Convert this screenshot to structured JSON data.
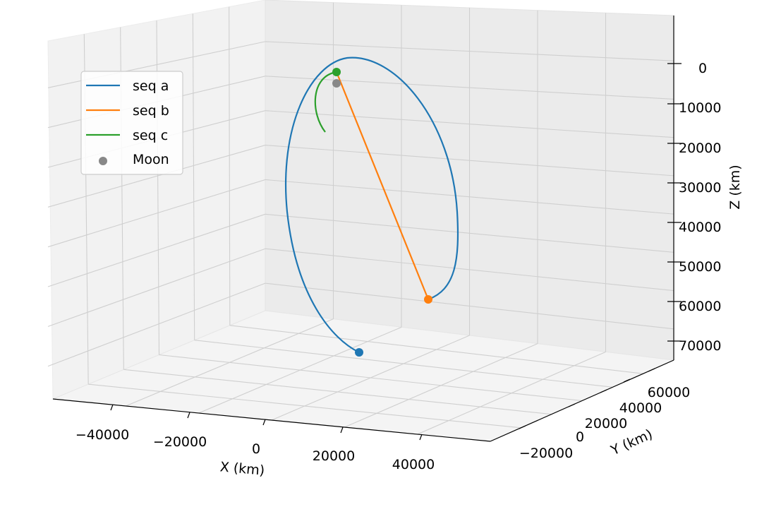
{
  "chart_data": {
    "type": "line",
    "projection": "3d",
    "title": "",
    "xlabel": "X (km)",
    "ylabel": "Y (km)",
    "zlabel": "Z (km)",
    "x_ticks": [
      "−40000",
      "−20000",
      "0",
      "20000",
      "40000"
    ],
    "y_ticks": [
      "−20000",
      "0",
      "20000",
      "40000",
      "60000"
    ],
    "z_ticks": [
      "0",
      "10000",
      "20000",
      "30000",
      "40000",
      "50000",
      "60000",
      "70000"
    ],
    "z_axis_inverted": true,
    "grid": true,
    "legend_position": "upper-left",
    "series": [
      {
        "name": "seq a",
        "color": "#1f77b4",
        "kind": "line",
        "endpoint": "start"
      },
      {
        "name": "seq b",
        "color": "#ff7f0e",
        "kind": "line",
        "endpoint": "start"
      },
      {
        "name": "seq c",
        "color": "#2ca02c",
        "kind": "line",
        "endpoint": "start"
      },
      {
        "name": "Moon",
        "color": "#888888",
        "kind": "marker"
      }
    ]
  }
}
